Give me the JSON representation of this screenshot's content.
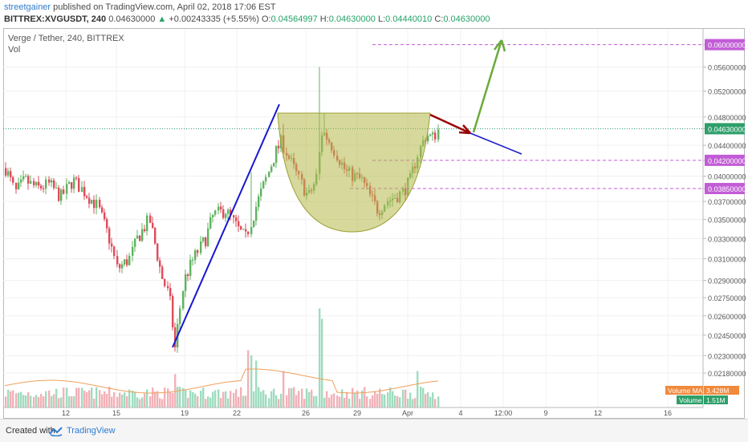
{
  "header": {
    "author": "streetgainer",
    "published_text": "published on TradingView.com, April 02, 2018 17:06 EST",
    "symbol": "BITTREX:XVGUSDT, 240",
    "last": "0.04630000",
    "change": "+0.00243335 (+5.55%)",
    "o_label": "O:",
    "o_value": "0.04564997",
    "h_label": "H:",
    "h_value": "0.04630000",
    "l_label": "L:",
    "l_value": "0.04440010",
    "c_label": "C:",
    "c_value": "0.04630000"
  },
  "legend": {
    "title": "Verge / Tether, 240, BITTREX",
    "vol": "Vol"
  },
  "footer": {
    "created": "Created with",
    "brand": "TradingView"
  },
  "colors": {
    "up": "#5fb35f",
    "down": "#dd4b5a",
    "vol_up": "#9fdcbf",
    "vol_down": "#f2b1b8",
    "trend": "#1717d0",
    "hline": "#c25cd6",
    "cup": "#b5b84a",
    "arrow_up": "#6aaa3a",
    "arrow_down": "#990000"
  },
  "chart_data": {
    "type": "candlestick",
    "y_scale": "log",
    "ylim": [
      0.0218,
      0.0616
    ],
    "x_tick_labels": [
      "12",
      "15",
      "19",
      "22",
      "26",
      "29",
      "Apr",
      "4",
      "12:00",
      "9",
      "12",
      "16"
    ],
    "y_tick_labels": [
      "0.06000000",
      "0.05600000",
      "0.05200000",
      "0.04800000",
      "0.04630000",
      "0.04400000",
      "0.04200000",
      "0.04000000",
      "0.03850000",
      "0.03700000",
      "0.03500000",
      "0.03300000",
      "0.03100000",
      "0.02900000",
      "0.02750000",
      "0.02600000",
      "0.02450000",
      "0.02300000",
      "0.02180000"
    ],
    "last_price": "0.04630000",
    "highlighted_levels": [
      "0.06000000",
      "0.04630000",
      "0.04200000",
      "0.03850000"
    ],
    "volume_ma_label": "Volume MA",
    "volume_ma_value": "3.428M",
    "volume_label": "Volume",
    "volume_value": "1.51M",
    "drawings": [
      "blue trendline up",
      "cup pattern",
      "dashed levels 0.06 / 0.042 / 0.0385",
      "dark red arrow down",
      "green arrow up",
      "blue projection line"
    ]
  }
}
